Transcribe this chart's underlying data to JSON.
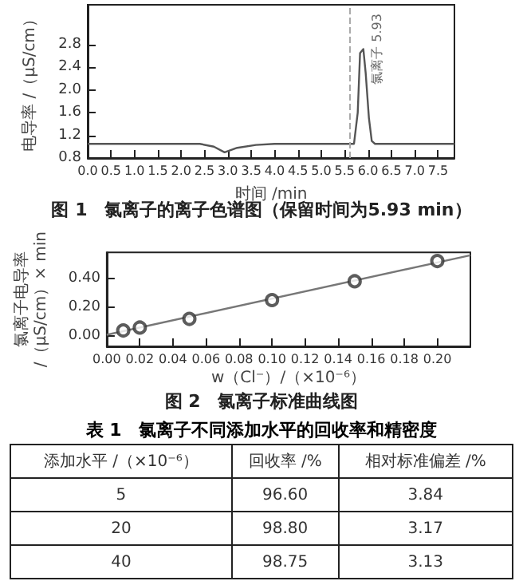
{
  "chart_data": [
    {
      "type": "line",
      "title": "图 1　氯离子的离子色谱图（保留时间为5.93 min）",
      "xlabel": "时间 /min",
      "ylabel": "电导率 /（μS/cm）",
      "xlim": [
        0,
        7.85
      ],
      "ylim": [
        0.8,
        3.5
      ],
      "xticks": [
        {
          "value": 0,
          "label": "0.0"
        },
        0.5,
        {
          "value": 1,
          "label": "1.0"
        },
        1.5,
        {
          "value": 2,
          "label": "2.0"
        },
        2.5,
        {
          "value": 3,
          "label": "3.0"
        },
        3.5,
        {
          "value": 4,
          "label": "4.0"
        },
        4.5,
        {
          "value": 5,
          "label": "5.0"
        },
        5.5,
        {
          "value": 6,
          "label": "6.0"
        },
        6.5,
        {
          "value": 7,
          "label": "7.0"
        },
        7.5
      ],
      "yticks": [
        0.8,
        1.2,
        1.6,
        {
          "value": 2,
          "label": "2.0"
        },
        2.4,
        2.8
      ],
      "grid": false,
      "marker": "none",
      "line_style": "solid",
      "x": [
        0,
        2.4,
        2.7,
        2.93,
        3.2,
        3.6,
        4.0,
        5.7,
        5.78,
        5.83,
        5.9,
        5.95,
        6.02,
        6.08,
        6.15,
        7.85
      ],
      "series": [
        {
          "color": "#555555",
          "values": [
            1.05,
            1.05,
            1.0,
            0.9,
            0.98,
            1.03,
            1.05,
            1.05,
            1.6,
            2.65,
            2.72,
            2.3,
            1.5,
            1.1,
            1.05,
            1.05
          ]
        }
      ],
      "ref_lines": [
        {
          "axis": "x",
          "value": 5.6,
          "color": "#aaaaaa",
          "line_style": "dashed"
        }
      ],
      "annotations": [
        {
          "text": "氯离子 5.93",
          "x": 5.93,
          "y": 2.72
        }
      ]
    },
    {
      "type": "scatter",
      "title": "图 2　氯离子标准曲线图",
      "xlabel": "w（Cl⁻）/（×10⁻⁶）",
      "ylabel": "氯离子电导率\n/（μS/cm）× min",
      "xlim": [
        0,
        0.22
      ],
      "ylim": [
        -0.07,
        0.58
      ],
      "xticks": [
        {
          "value": 0,
          "label": "0.00"
        },
        {
          "value": 0.02,
          "label": "0.02"
        },
        {
          "value": 0.04,
          "label": "0.04"
        },
        {
          "value": 0.06,
          "label": "0.06"
        },
        {
          "value": 0.08,
          "label": "0.08"
        },
        {
          "value": 0.1,
          "label": "0.10"
        },
        {
          "value": 0.12,
          "label": "0.12"
        },
        {
          "value": 0.14,
          "label": "0.14"
        },
        {
          "value": 0.16,
          "label": "0.16"
        },
        {
          "value": 0.18,
          "label": "0.18"
        },
        {
          "value": 0.2,
          "label": "0.20"
        }
      ],
      "yticks": [
        {
          "value": 0,
          "label": "0.00"
        },
        {
          "value": 0.2,
          "label": "0.20"
        },
        {
          "value": 0.4,
          "label": "0.40"
        }
      ],
      "grid": false,
      "marker": "circle",
      "x": [
        0.01,
        0.02,
        0.05,
        0.1,
        0.15,
        0.2
      ],
      "series": [
        {
          "color": "#333333",
          "values": [
            0.04,
            0.06,
            0.12,
            0.25,
            0.38,
            0.52
          ]
        },
        {
          "type": "line",
          "marker": "none",
          "color": "#777777",
          "x": [
            0,
            0.22
          ],
          "values": [
            0.01,
            0.56
          ]
        }
      ]
    },
    {
      "type": "other",
      "title": "表 1　氯离子不同添加水平的回收率和精密度",
      "annotations": [
        "添加水平 /（×10⁻⁶）",
        "回收率 /%",
        "相对标准偏差 /%",
        "5",
        "96.60",
        "3.84",
        "20",
        "98.80",
        "3.17",
        "40",
        "98.75",
        "3.13"
      ]
    }
  ]
}
